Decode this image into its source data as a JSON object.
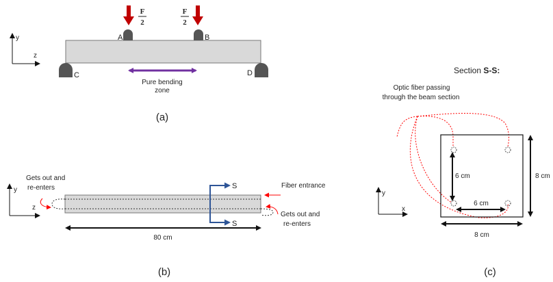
{
  "colors": {
    "load_arrow": "#c00000",
    "pure_bending_arrow": "#7030a0",
    "section_arrow": "#2e5597",
    "fiber": "#ff0000",
    "beam_fill": "#d9d9d9",
    "support_fill": "#555555"
  },
  "panel_a": {
    "caption": "(a)",
    "load_numerator": "F",
    "load_denominator": "2",
    "support_labels": {
      "a": "A",
      "b": "B",
      "c": "C",
      "d": "D"
    },
    "axis": {
      "y": "y",
      "z": "z"
    },
    "pure_bending_line1": "Pure bending",
    "pure_bending_line2": "zone"
  },
  "panel_b": {
    "caption": "(b)",
    "axis": {
      "y": "y",
      "z": "z"
    },
    "section_mark": "S",
    "left_note_line1": "Gets out and",
    "left_note_line2": "re-enters",
    "right_note_line1": "Gets out and",
    "right_note_line2": "re-enters",
    "fiber_entrance": "Fiber entrance",
    "length_label": "80 cm"
  },
  "panel_c": {
    "caption": "(c)",
    "title_prefix": "Section ",
    "title_bold": "S-S:",
    "fiber_note_line1": "Optic fiber passing",
    "fiber_note_line2": "through the beam section",
    "axis": {
      "y": "y",
      "x": "x"
    },
    "vertical_spacing": "6 cm",
    "horizontal_spacing": "6 cm",
    "height_label": "8 cm",
    "width_label": "8 cm"
  }
}
